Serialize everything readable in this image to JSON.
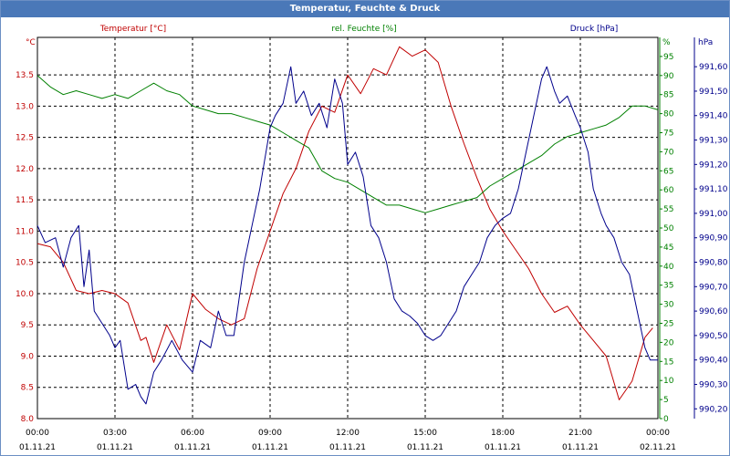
{
  "title": "Temperatur, Feuchte & Druck",
  "colors": {
    "temperature": "#c00000",
    "humidity": "#008000",
    "pressure": "#00008b",
    "grid": "#000000",
    "text": "#000000",
    "title_bg": "#4a78b8"
  },
  "chart_data": {
    "type": "line",
    "title": "Temperatur, Feuchte & Druck",
    "grid": true,
    "x_tick_labels": [
      "00:00",
      "03:00",
      "06:00",
      "09:00",
      "12:00",
      "15:00",
      "18:00",
      "21:00",
      "00:00"
    ],
    "x_date_labels": [
      "01.11.21",
      "01.11.21",
      "01.11.21",
      "01.11.21",
      "01.11.21",
      "01.11.21",
      "01.11.21",
      "01.11.21",
      "02.11.21"
    ],
    "xlim": [
      0,
      24
    ],
    "axes": {
      "temperature": {
        "label": "Temperatur [°C]",
        "unit": "°C",
        "ylim": [
          8.0,
          14.1
        ],
        "ticks": [
          "8.0",
          "8.5",
          "9.0",
          "9.5",
          "10.0",
          "10.5",
          "11.0",
          "11.5",
          "12.0",
          "12.5",
          "13.0",
          "13.5"
        ]
      },
      "humidity": {
        "label": "rel. Feuchte [%]",
        "unit": "%",
        "ylim": [
          0,
          100
        ],
        "ticks": [
          "0",
          "5",
          "10",
          "15",
          "20",
          "25",
          "30",
          "35",
          "40",
          "45",
          "50",
          "55",
          "60",
          "65",
          "70",
          "75",
          "80",
          "85",
          "90",
          "95"
        ]
      },
      "pressure": {
        "label": "Druck [hPa]",
        "unit": "hPa",
        "ylim": [
          990.16,
          991.72
        ],
        "ticks": [
          "990,20",
          "990,30",
          "990,40",
          "990,50",
          "990,60",
          "990,70",
          "990,80",
          "990,90",
          "991,00",
          "991,10",
          "991,20",
          "991,30",
          "991,40",
          "991,50",
          "991,60"
        ]
      }
    },
    "series": [
      {
        "name": "Temperatur [°C]",
        "axis": "temperature",
        "color": "#c00000",
        "x": [
          0,
          0.5,
          1.0,
          1.5,
          2.0,
          2.5,
          3.0,
          3.5,
          4.0,
          4.2,
          4.5,
          5.0,
          5.5,
          6.0,
          6.5,
          7.0,
          7.5,
          8.0,
          8.5,
          9.0,
          9.5,
          10.0,
          10.5,
          11.0,
          11.5,
          12.0,
          12.5,
          13.0,
          13.5,
          14.0,
          14.5,
          15.0,
          15.5,
          16.0,
          16.5,
          17.0,
          17.5,
          18.0,
          18.5,
          19.0,
          19.5,
          20.0,
          20.5,
          21.0,
          21.5,
          22.0,
          22.5,
          23.0,
          23.5,
          23.8
        ],
        "values": [
          10.8,
          10.75,
          10.5,
          10.05,
          10.0,
          10.05,
          10.0,
          9.85,
          9.25,
          9.3,
          8.9,
          9.5,
          9.1,
          10.0,
          9.75,
          9.6,
          9.5,
          9.6,
          10.4,
          11.0,
          11.6,
          12.0,
          12.6,
          13.0,
          12.9,
          13.5,
          13.2,
          13.6,
          13.5,
          13.95,
          13.8,
          13.9,
          13.7,
          13.0,
          12.4,
          11.85,
          11.35,
          11.0,
          10.7,
          10.4,
          10.0,
          9.7,
          9.8,
          9.5,
          9.25,
          9.0,
          8.3,
          8.6,
          9.3,
          9.45
        ]
      },
      {
        "name": "rel. Feuchte [%]",
        "axis": "humidity",
        "color": "#008000",
        "x": [
          0,
          0.5,
          1.0,
          1.5,
          2.0,
          2.5,
          3.0,
          3.5,
          4.0,
          4.5,
          5.0,
          5.5,
          6.0,
          6.5,
          7.0,
          7.5,
          8.0,
          8.5,
          9.0,
          9.5,
          10.0,
          10.5,
          11.0,
          11.5,
          12.0,
          12.5,
          13.0,
          13.5,
          14.0,
          14.5,
          15.0,
          15.5,
          16.0,
          16.5,
          17.0,
          17.5,
          18.0,
          18.5,
          19.0,
          19.5,
          20.0,
          20.5,
          21.0,
          21.5,
          22.0,
          22.5,
          23.0,
          23.5,
          24.0
        ],
        "values": [
          90,
          87,
          85,
          86,
          85,
          84,
          85,
          84,
          86,
          88,
          86,
          85,
          82,
          81,
          80,
          80,
          79,
          78,
          77,
          75,
          73,
          71,
          65,
          63,
          62,
          60,
          58,
          56,
          56,
          55,
          54,
          55,
          56,
          57,
          58,
          61,
          63,
          65,
          67,
          69,
          72,
          74,
          75,
          76,
          77,
          79,
          82,
          82,
          81
        ]
      },
      {
        "name": "Druck [hPa]",
        "axis": "pressure",
        "color": "#00008b",
        "x": [
          0,
          0.3,
          0.7,
          1.0,
          1.3,
          1.6,
          1.8,
          2.0,
          2.2,
          2.5,
          2.8,
          3.0,
          3.2,
          3.5,
          3.8,
          4.0,
          4.2,
          4.5,
          4.8,
          5.2,
          5.6,
          6.0,
          6.3,
          6.7,
          7.0,
          7.3,
          7.6,
          8.0,
          8.3,
          8.6,
          9.0,
          9.2,
          9.5,
          9.8,
          10.0,
          10.3,
          10.6,
          10.9,
          11.2,
          11.5,
          11.8,
          12.0,
          12.3,
          12.6,
          12.9,
          13.2,
          13.5,
          13.8,
          14.1,
          14.4,
          14.7,
          15.0,
          15.3,
          15.6,
          15.9,
          16.2,
          16.5,
          16.8,
          17.1,
          17.4,
          17.7,
          18.0,
          18.3,
          18.6,
          18.9,
          19.2,
          19.5,
          19.7,
          20.0,
          20.2,
          20.5,
          20.8,
          21.0,
          21.3,
          21.5,
          21.8,
          22.0,
          22.3,
          22.6,
          22.9,
          23.2,
          23.5,
          23.7,
          24.0
        ],
        "values": [
          990.95,
          990.88,
          990.9,
          990.78,
          990.9,
          990.95,
          990.7,
          990.85,
          990.6,
          990.55,
          990.5,
          990.45,
          990.48,
          990.28,
          990.3,
          990.25,
          990.22,
          990.35,
          990.4,
          990.48,
          990.4,
          990.35,
          990.48,
          990.45,
          990.6,
          990.5,
          990.5,
          990.8,
          990.95,
          991.1,
          991.35,
          991.4,
          991.45,
          991.6,
          991.45,
          991.5,
          991.4,
          991.45,
          991.35,
          991.55,
          991.45,
          991.2,
          991.25,
          991.15,
          990.95,
          990.9,
          990.8,
          990.65,
          990.6,
          990.58,
          990.55,
          990.5,
          990.48,
          990.5,
          990.55,
          990.6,
          990.7,
          990.75,
          990.8,
          990.9,
          990.95,
          990.98,
          991.0,
          991.1,
          991.25,
          991.4,
          991.55,
          991.6,
          991.5,
          991.45,
          991.48,
          991.4,
          991.35,
          991.25,
          991.1,
          991.0,
          990.95,
          990.9,
          990.8,
          990.75,
          990.6,
          990.45,
          990.4,
          990.4
        ]
      }
    ]
  }
}
